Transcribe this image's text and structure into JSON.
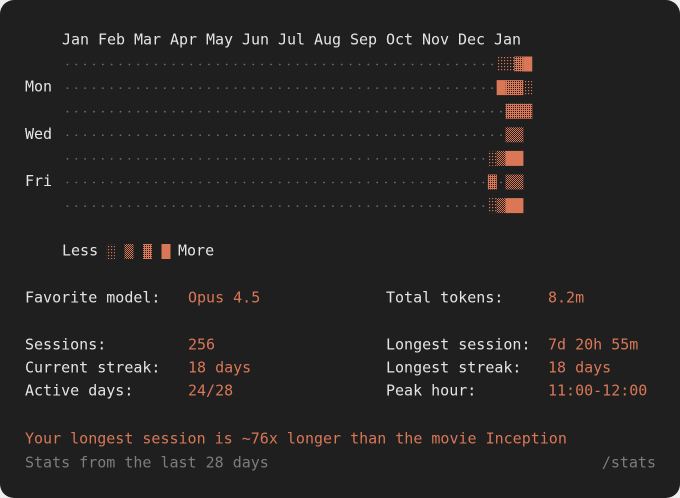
{
  "heatmap": {
    "months": [
      "Jan",
      "Feb",
      "Mar",
      "Apr",
      "May",
      "Jun",
      "Jul",
      "Aug",
      "Sep",
      "Oct",
      "Nov",
      "Dec",
      "Jan"
    ],
    "days": [
      null,
      "Mon",
      null,
      "Wed",
      null,
      "Fri",
      null
    ],
    "levels": [
      [
        0,
        0,
        0,
        0,
        0,
        0,
        0,
        0,
        0,
        0,
        0,
        0,
        0,
        0,
        0,
        0,
        0,
        0,
        0,
        0,
        0,
        0,
        0,
        0,
        0,
        0,
        0,
        0,
        0,
        0,
        0,
        0,
        0,
        0,
        0,
        0,
        0,
        0,
        0,
        0,
        0,
        0,
        0,
        0,
        0,
        0,
        0,
        0,
        0,
        1,
        1,
        3,
        4
      ],
      [
        0,
        0,
        0,
        0,
        0,
        0,
        0,
        0,
        0,
        0,
        0,
        0,
        0,
        0,
        0,
        0,
        0,
        0,
        0,
        0,
        0,
        0,
        0,
        0,
        0,
        0,
        0,
        0,
        0,
        0,
        0,
        0,
        0,
        0,
        0,
        0,
        0,
        0,
        0,
        0,
        0,
        0,
        0,
        0,
        0,
        0,
        0,
        0,
        0,
        4,
        3,
        3,
        1
      ],
      [
        0,
        0,
        0,
        0,
        0,
        0,
        0,
        0,
        0,
        0,
        0,
        0,
        0,
        0,
        0,
        0,
        0,
        0,
        0,
        0,
        0,
        0,
        0,
        0,
        0,
        0,
        0,
        0,
        0,
        0,
        0,
        0,
        0,
        0,
        0,
        0,
        0,
        0,
        0,
        0,
        0,
        0,
        0,
        0,
        0,
        0,
        0,
        0,
        0,
        0,
        3,
        3,
        3
      ],
      [
        0,
        0,
        0,
        0,
        0,
        0,
        0,
        0,
        0,
        0,
        0,
        0,
        0,
        0,
        0,
        0,
        0,
        0,
        0,
        0,
        0,
        0,
        0,
        0,
        0,
        0,
        0,
        0,
        0,
        0,
        0,
        0,
        0,
        0,
        0,
        0,
        0,
        0,
        0,
        0,
        0,
        0,
        0,
        0,
        0,
        0,
        0,
        0,
        0,
        0,
        2,
        2,
        null
      ],
      [
        0,
        0,
        0,
        0,
        0,
        0,
        0,
        0,
        0,
        0,
        0,
        0,
        0,
        0,
        0,
        0,
        0,
        0,
        0,
        0,
        0,
        0,
        0,
        0,
        0,
        0,
        0,
        0,
        0,
        0,
        0,
        0,
        0,
        0,
        0,
        0,
        0,
        0,
        0,
        0,
        0,
        0,
        0,
        0,
        0,
        0,
        0,
        0,
        1,
        2,
        4,
        4,
        null
      ],
      [
        0,
        0,
        0,
        0,
        0,
        0,
        0,
        0,
        0,
        0,
        0,
        0,
        0,
        0,
        0,
        0,
        0,
        0,
        0,
        0,
        0,
        0,
        0,
        0,
        0,
        0,
        0,
        0,
        0,
        0,
        0,
        0,
        0,
        0,
        0,
        0,
        0,
        0,
        0,
        0,
        0,
        0,
        0,
        0,
        0,
        0,
        0,
        0,
        3,
        0,
        2,
        2,
        null
      ],
      [
        0,
        0,
        0,
        0,
        0,
        0,
        0,
        0,
        0,
        0,
        0,
        0,
        0,
        0,
        0,
        0,
        0,
        0,
        0,
        0,
        0,
        0,
        0,
        0,
        0,
        0,
        0,
        0,
        0,
        0,
        0,
        0,
        0,
        0,
        0,
        0,
        0,
        0,
        0,
        0,
        0,
        0,
        0,
        0,
        0,
        0,
        0,
        0,
        1,
        2,
        4,
        4,
        null
      ]
    ],
    "legend": {
      "less": "Less",
      "levels": [
        1,
        2,
        3,
        4
      ],
      "more": "More"
    }
  },
  "stats": {
    "left": [
      {
        "label": "Favorite model:",
        "value": "Opus 4.5"
      },
      {
        "label": "Sessions:",
        "value": "256"
      },
      {
        "label": "Current streak:",
        "value": "18 days"
      },
      {
        "label": "Active days:",
        "value": "24/28"
      }
    ],
    "right": [
      {
        "label": "Total tokens:",
        "value": "8.2m"
      },
      {
        "label": "Longest session:",
        "value": "7d 20h 55m"
      },
      {
        "label": "Longest streak:",
        "value": "18 days"
      },
      {
        "label": "Peak hour:",
        "value": "11:00-12:00"
      }
    ]
  },
  "footer": {
    "fun_fact": "Your longest session is ~76x longer than the movie Inception",
    "note": "Stats from the last 28 days",
    "command": "/stats"
  }
}
